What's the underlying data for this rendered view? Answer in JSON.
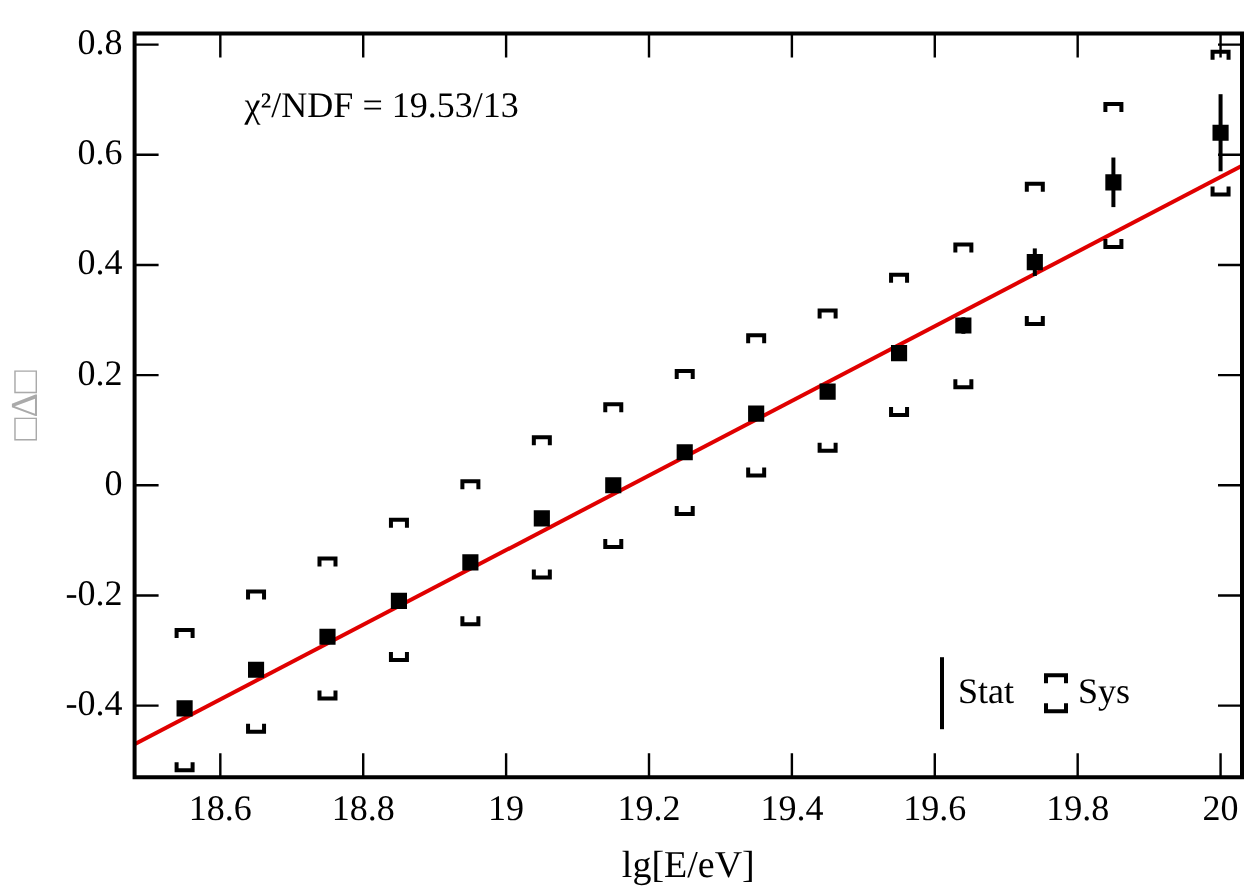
{
  "chart_data": {
    "type": "scatter",
    "xlabel": "lg[E/eV]",
    "ylabel": "□Δ□",
    "annotations": [
      "χ²/NDF = 19.53/13"
    ],
    "xlim": [
      18.48,
      20.03
    ],
    "ylim": [
      -0.53,
      0.82
    ],
    "xticks": [
      18.6,
      18.8,
      19,
      19.2,
      19.4,
      19.6,
      19.8,
      20
    ],
    "yticks": [
      -0.4,
      -0.2,
      0,
      0.2,
      0.4,
      0.6,
      0.8
    ],
    "grid": false,
    "legend": "bottom right",
    "marker": "square",
    "series": [
      {
        "name": "Stat",
        "color": "#000000",
        "x": [
          18.55,
          18.65,
          18.75,
          18.85,
          18.95,
          19.05,
          19.15,
          19.25,
          19.35,
          19.45,
          19.55,
          19.64,
          19.74,
          19.85,
          20.0
        ],
        "values": [
          -0.405,
          -0.335,
          -0.275,
          -0.21,
          -0.14,
          -0.06,
          0.0,
          0.06,
          0.13,
          0.17,
          0.24,
          0.29,
          0.405,
          0.55,
          0.64
        ],
        "errors": [
          null,
          null,
          null,
          null,
          null,
          null,
          null,
          null,
          null,
          null,
          0.01,
          0.015,
          0.025,
          0.045,
          0.07
        ]
      },
      {
        "name": "Sys",
        "color": "#000000",
        "marker": "cross",
        "x": [
          18.55,
          18.55,
          18.65,
          18.65,
          18.75,
          18.75,
          18.85,
          18.85,
          18.95,
          18.95,
          19.05,
          19.05,
          19.15,
          19.15,
          19.25,
          19.25,
          19.35,
          19.35,
          19.45,
          19.45,
          19.55,
          19.55,
          19.64,
          19.64,
          19.74,
          19.74,
          19.85,
          19.85,
          20.0,
          20.0
        ],
        "values": [
          -0.51,
          -0.27,
          -0.44,
          -0.2,
          -0.38,
          -0.14,
          -0.31,
          -0.07,
          -0.245,
          0.0,
          -0.16,
          0.08,
          -0.105,
          0.14,
          -0.045,
          0.2,
          0.025,
          0.265,
          0.07,
          0.31,
          0.135,
          0.375,
          0.185,
          0.43,
          0.3,
          0.54,
          0.44,
          0.685,
          0.535,
          0.78
        ]
      },
      {
        "type": "line",
        "color": "#e00000",
        "marker": "none",
        "x": [
          18.48,
          20.03
        ],
        "values": [
          -0.47,
          0.58
        ]
      }
    ]
  }
}
